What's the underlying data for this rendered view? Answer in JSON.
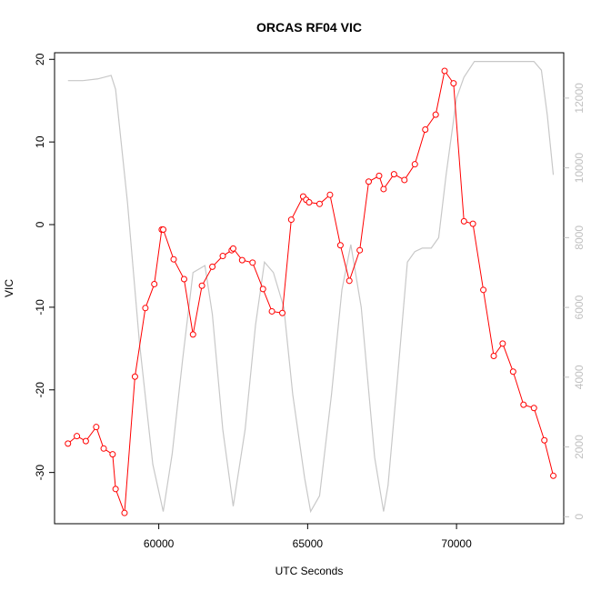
{
  "chart_data": {
    "type": "line",
    "title": "ORCAS RF04 VIC",
    "xlabel": "UTC Seconds",
    "ylabel": "VIC",
    "xlim": [
      56500,
      73600
    ],
    "ylim": [
      -36.2,
      20.8
    ],
    "y2lim": [
      -200,
      13300
    ],
    "x_ticks": [
      60000,
      65000,
      70000
    ],
    "x_tick_labels": [
      "60000",
      "65000",
      "70000"
    ],
    "y_ticks": [
      -30,
      -20,
      -10,
      0,
      10,
      20
    ],
    "y_tick_labels": [
      "-30",
      "-20",
      "-10",
      "0",
      "10",
      "20"
    ],
    "y2_ticks": [
      0,
      2000,
      4000,
      6000,
      8000,
      10000,
      12000
    ],
    "y2_tick_labels": [
      "0",
      "2000",
      "4000",
      "6000",
      "8000",
      "10000",
      "12000"
    ],
    "colors": {
      "vic": "#ff0000",
      "altitude": "#c8c8c8",
      "secondary_axis": "#c0c0c0"
    },
    "grid": false,
    "series": [
      {
        "axis": "left",
        "style": "line+points",
        "x": [
          56950,
          57250,
          57550,
          57900,
          58150,
          58450,
          58550,
          58850,
          59200,
          59550,
          59850,
          60100,
          60150,
          60500,
          60850,
          61150,
          61450,
          61800,
          62150,
          62450,
          62500,
          62800,
          63150,
          63500,
          63800,
          64150,
          64450,
          64850,
          64950,
          65050,
          65400,
          65750,
          66100,
          66400,
          66750,
          67050,
          67400,
          67550,
          67900,
          68250,
          68600,
          68950,
          69300,
          69600,
          69900,
          70250,
          70550,
          70900,
          71250,
          71550,
          71900,
          72250,
          72600,
          72950,
          73250
        ],
        "y": [
          -26.5,
          -25.6,
          -26.2,
          -24.5,
          -27.1,
          -27.8,
          -32.0,
          -34.9,
          -18.4,
          -10.1,
          -7.2,
          -0.6,
          -0.6,
          -4.2,
          -6.6,
          -13.3,
          -7.4,
          -5.1,
          -3.8,
          -3.1,
          -2.9,
          -4.3,
          -4.6,
          -7.8,
          -10.5,
          -10.7,
          0.6,
          3.4,
          3.0,
          2.7,
          2.5,
          3.6,
          -2.5,
          -6.8,
          -3.1,
          5.2,
          5.9,
          4.3,
          6.1,
          5.4,
          7.3,
          11.5,
          13.3,
          18.6,
          17.1,
          0.4,
          0.1,
          -7.9,
          -15.9,
          -14.4,
          -17.8,
          -21.8,
          -22.2,
          -26.1,
          -30.4
        ]
      },
      {
        "axis": "right",
        "style": "line",
        "x": [
          56950,
          57450,
          57950,
          58400,
          58550,
          58950,
          59350,
          59800,
          60150,
          60450,
          60800,
          61150,
          61550,
          61800,
          62150,
          62500,
          62900,
          63250,
          63550,
          63850,
          64200,
          64500,
          64900,
          65100,
          65400,
          65800,
          66150,
          66450,
          66800,
          67250,
          67550,
          67700,
          68000,
          68350,
          68600,
          68850,
          69150,
          69400,
          69650,
          70000,
          70250,
          70600,
          71000,
          71400,
          71800,
          72200,
          72600,
          72850,
          73050,
          73250
        ],
        "y": [
          12500,
          12500,
          12550,
          12650,
          12250,
          9000,
          5000,
          1500,
          150,
          1800,
          4500,
          7000,
          7200,
          5800,
          2500,
          300,
          2500,
          5500,
          7300,
          7000,
          6000,
          3500,
          1100,
          150,
          600,
          3500,
          6500,
          7800,
          6000,
          1700,
          150,
          900,
          3800,
          7300,
          7600,
          7700,
          7700,
          8000,
          9800,
          12000,
          12600,
          13050,
          13050,
          13050,
          13050,
          13050,
          13050,
          12800,
          11500,
          9800
        ]
      }
    ]
  }
}
